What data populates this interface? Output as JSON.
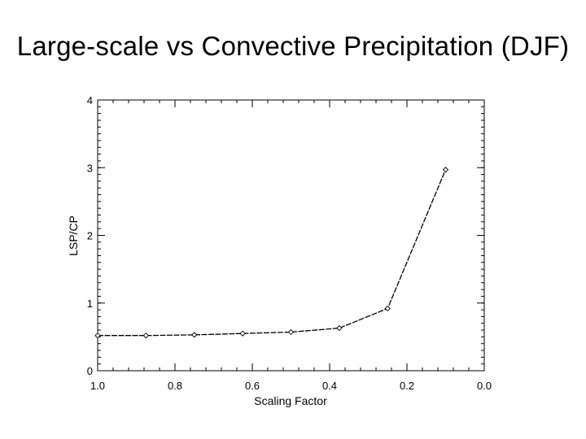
{
  "slide": {
    "title": "Large-scale vs Convective Precipitation (DJF)"
  },
  "chart_data": {
    "type": "line",
    "title": "Large-scale vs Convective Precipitation (DJF)",
    "xlabel": "Scaling Factor",
    "ylabel": "LSP/CP",
    "xlim": [
      1.0,
      0.0
    ],
    "ylim": [
      0,
      4
    ],
    "x_ticks": [
      1.0,
      0.8,
      0.6,
      0.4,
      0.2,
      0.0
    ],
    "x_tick_labels": [
      "1.0",
      "0.8",
      "0.6",
      "0.4",
      "0.2",
      "0.0"
    ],
    "y_ticks": [
      0,
      1,
      2,
      3,
      4
    ],
    "y_tick_labels": [
      "0",
      "1",
      "2",
      "3",
      "4"
    ],
    "grid": false,
    "marker": "diamond",
    "series": [
      {
        "name": "LSP/CP",
        "x": [
          1.0,
          0.875,
          0.75,
          0.625,
          0.5,
          0.375,
          0.25,
          0.1
        ],
        "y": [
          0.52,
          0.52,
          0.53,
          0.55,
          0.57,
          0.63,
          0.92,
          2.97
        ]
      }
    ],
    "colors": {
      "line": "#000000",
      "axes": "#000000"
    }
  }
}
